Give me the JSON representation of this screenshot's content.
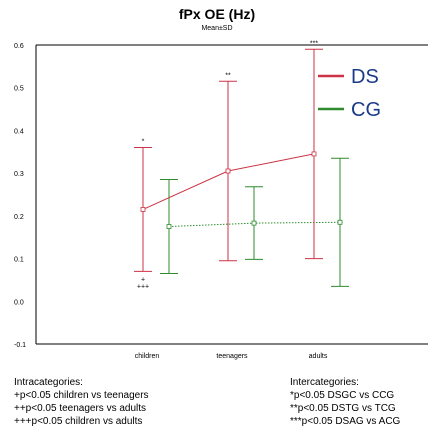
{
  "chart_data": {
    "type": "line",
    "title": "fPx OE (Hz)",
    "subtitle": "Mean±SD",
    "categories": [
      "children",
      "teenagers",
      "adults"
    ],
    "ylim": [
      -0.1,
      0.6
    ],
    "yticks": [
      "0.6",
      "0.5",
      "0.4",
      "0.3",
      "0.2",
      "0.1",
      "0.0",
      "-0.1"
    ],
    "grid": false,
    "legend_position": "top-right",
    "series": [
      {
        "name": "DS",
        "color": "#cc3344",
        "style": "solid",
        "mean": [
          0.215,
          0.305,
          0.345
        ],
        "sd": [
          0.145,
          0.21,
          0.245
        ]
      },
      {
        "name": "CG",
        "color": "#2e8b2e",
        "style": "dotted",
        "mean": [
          0.175,
          0.183,
          0.185
        ],
        "sd": [
          0.11,
          0.085,
          0.15
        ]
      }
    ],
    "annotations": [
      {
        "text": "*",
        "series": "DS",
        "category": 0,
        "where": "above"
      },
      {
        "text": "+",
        "series": "DS",
        "category": 0,
        "where": "below"
      },
      {
        "text": "+++",
        "series": "DS",
        "category": 0,
        "where": "below2"
      },
      {
        "text": "**",
        "series": "DS",
        "category": 1,
        "where": "above"
      },
      {
        "text": "***",
        "series": "DS",
        "category": 2,
        "where": "above"
      }
    ]
  },
  "notes": {
    "intra_title": "Intracategories:",
    "intra": [
      "+p<0.05 children vs teenagers",
      "++p<0.05 teenagers vs adults",
      "+++p<0.05 children vs adults"
    ],
    "inter_title": "Intercategories:",
    "inter": [
      "*p<0.05 DSGC vs CCG",
      "**p<0.05 DSTG vs TCG",
      "***p<0.05 DSAG vs ACG"
    ]
  }
}
